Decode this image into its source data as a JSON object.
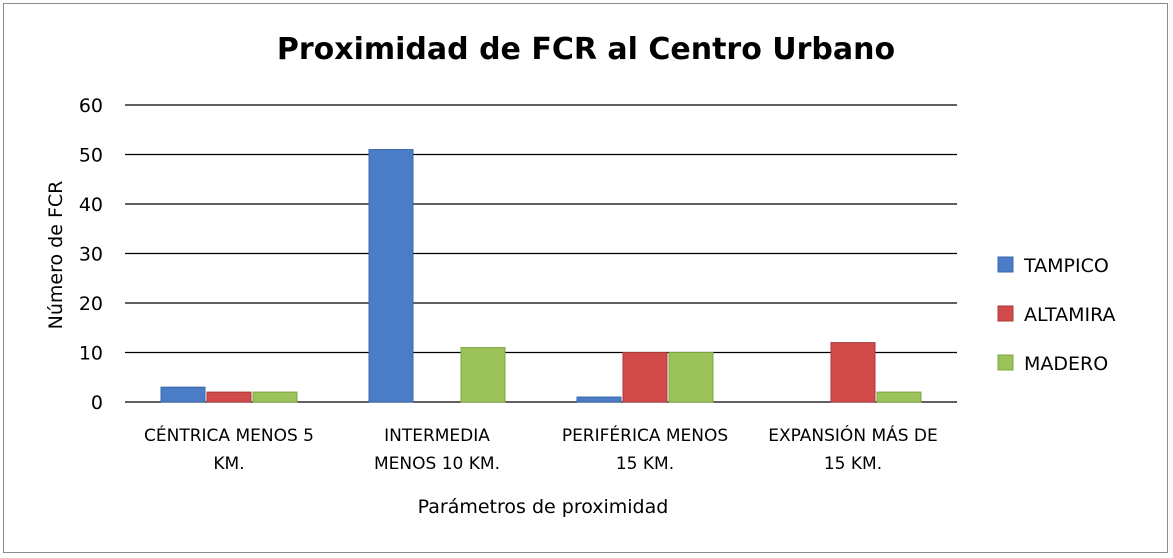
{
  "chart_data": {
    "type": "bar",
    "title": "Proximidad de FCR al Centro Urbano",
    "xlabel": "Parámetros de proximidad",
    "ylabel": "Número de FCR",
    "ylim": [
      0,
      60
    ],
    "yticks": [
      0,
      10,
      20,
      30,
      40,
      50,
      60
    ],
    "grid": true,
    "legend_position": "right",
    "categories": [
      [
        "CÉNTRICA MENOS 5",
        "KM."
      ],
      [
        "INTERMEDIA",
        "MENOS 10 KM."
      ],
      [
        "PERIFÉRICA MENOS",
        "15 KM."
      ],
      [
        "EXPANSIÓN MÁS DE",
        "15 KM."
      ]
    ],
    "series": [
      {
        "name": "TAMPICO",
        "color": "#4a7dc6",
        "stroke": "#3a67a8",
        "values": [
          3,
          51,
          1,
          0
        ]
      },
      {
        "name": "ALTAMIRA",
        "color": "#d24b4b",
        "stroke": "#a83a3a",
        "values": [
          2,
          0,
          10,
          12
        ]
      },
      {
        "name": "MADERO",
        "color": "#9bc35a",
        "stroke": "#7fa444",
        "values": [
          2,
          11,
          10,
          2
        ]
      }
    ]
  }
}
